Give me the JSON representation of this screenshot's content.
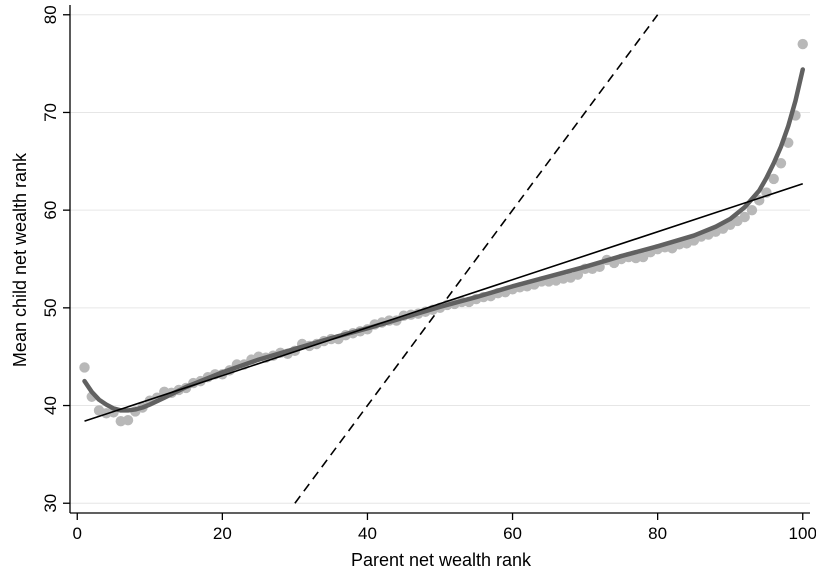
{
  "chart_data": {
    "type": "scatter",
    "title": "",
    "xlabel": "Parent net wealth rank",
    "ylabel": "Mean child net wealth rank",
    "xlim": [
      -1,
      101
    ],
    "ylim": [
      29,
      81
    ],
    "xticks": [
      0,
      20,
      40,
      60,
      80,
      100
    ],
    "yticks": [
      30,
      40,
      50,
      60,
      70,
      80
    ],
    "grid": "horizontal",
    "legend": "none",
    "colors": {
      "points": "#b8b8b8",
      "smooth": "#616161",
      "fit": "#000000",
      "reference": "#000000",
      "grid": "#e6e6e6"
    },
    "series": [
      {
        "type": "scatter",
        "x": [
          1,
          2,
          3,
          4,
          5,
          6,
          7,
          8,
          9,
          10,
          11,
          12,
          13,
          14,
          15,
          16,
          17,
          18,
          19,
          20,
          21,
          22,
          23,
          24,
          25,
          26,
          27,
          28,
          29,
          30,
          31,
          32,
          33,
          34,
          35,
          36,
          37,
          38,
          39,
          40,
          41,
          42,
          43,
          44,
          45,
          46,
          47,
          48,
          49,
          50,
          51,
          52,
          53,
          54,
          55,
          56,
          57,
          58,
          59,
          60,
          61,
          62,
          63,
          64,
          65,
          66,
          67,
          68,
          69,
          70,
          71,
          72,
          73,
          74,
          75,
          76,
          77,
          78,
          79,
          80,
          81,
          82,
          83,
          84,
          85,
          86,
          87,
          88,
          89,
          90,
          91,
          92,
          93,
          94,
          95,
          96,
          97,
          98,
          99,
          100
        ],
        "y": [
          43.9,
          40.9,
          39.5,
          39.2,
          39.3,
          38.4,
          38.5,
          39.4,
          39.8,
          40.5,
          40.8,
          41.4,
          41.3,
          41.6,
          41.8,
          42.3,
          42.5,
          42.9,
          43.2,
          43.2,
          43.6,
          44.2,
          44.2,
          44.7,
          45.0,
          44.9,
          45.1,
          45.4,
          45.3,
          45.6,
          46.3,
          46.1,
          46.3,
          46.6,
          46.8,
          46.8,
          47.2,
          47.4,
          47.6,
          47.8,
          48.3,
          48.5,
          48.7,
          48.7,
          49.2,
          49.3,
          49.4,
          49.6,
          49.8,
          50.0,
          50.3,
          50.4,
          50.6,
          50.6,
          50.9,
          51.1,
          51.2,
          51.5,
          51.6,
          51.9,
          52.1,
          52.2,
          52.4,
          52.7,
          52.7,
          52.8,
          53.0,
          53.1,
          53.4,
          54.0,
          54.0,
          54.2,
          54.9,
          54.6,
          55.0,
          55.2,
          55.1,
          55.2,
          55.7,
          56.0,
          56.2,
          56.1,
          56.5,
          56.6,
          56.9,
          57.3,
          57.5,
          57.8,
          58.1,
          58.5,
          58.9,
          59.3,
          60.0,
          61.0,
          61.8,
          63.2,
          64.8,
          66.9,
          69.7,
          77.0
        ]
      },
      {
        "type": "line",
        "style": "smooth",
        "x": [
          1,
          2,
          3,
          4,
          5,
          6,
          7,
          8,
          9,
          10,
          12,
          15,
          20,
          25,
          30,
          35,
          40,
          45,
          50,
          55,
          60,
          65,
          70,
          75,
          80,
          85,
          88,
          90,
          92,
          94,
          95,
          96,
          97,
          98,
          99,
          100
        ],
        "y": [
          42.5,
          41.4,
          40.6,
          40.1,
          39.7,
          39.5,
          39.5,
          39.6,
          39.8,
          40.1,
          40.8,
          41.9,
          43.4,
          44.7,
          45.8,
          46.9,
          47.9,
          49.0,
          50.1,
          51.1,
          52.2,
          53.2,
          54.2,
          55.3,
          56.3,
          57.4,
          58.3,
          59.1,
          60.3,
          62.0,
          63.3,
          64.8,
          66.5,
          68.6,
          71.2,
          74.4
        ]
      },
      {
        "type": "line",
        "style": "linear-fit",
        "x": [
          1,
          100
        ],
        "y": [
          38.4,
          62.7
        ]
      },
      {
        "type": "line",
        "style": "dashed",
        "x": [
          30,
          80
        ],
        "y": [
          30,
          80
        ]
      }
    ]
  }
}
